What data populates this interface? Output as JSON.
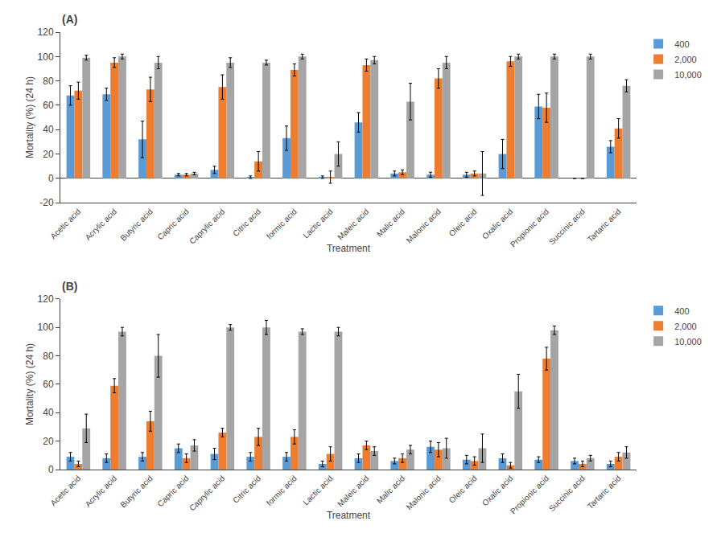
{
  "chart_data": [
    {
      "type": "bar",
      "title": "(A)",
      "xlabel": "Treatment",
      "ylabel": "Mortality (%) (24 h)",
      "categories": [
        "Acetic acid",
        "Acrylic acid",
        "Butyric acid",
        "Capric acid",
        "Caprylic acid",
        "Citric acid",
        "formic acid",
        "Lactic acid",
        "Maleic acid",
        "Malic acid",
        "Malonic acid",
        "Oleic acid",
        "Oxalic acid",
        "Propionic acid",
        "Succinic acid",
        "Tartaric acid"
      ],
      "series": [
        {
          "name": "400",
          "color": "#5B9BD5",
          "values": [
            68,
            69,
            32,
            3,
            7,
            1,
            33,
            1,
            46,
            4,
            3,
            3,
            20,
            59,
            0,
            26
          ],
          "error": [
            8,
            5,
            15,
            1,
            3,
            1,
            10,
            1,
            8,
            2,
            2,
            2,
            12,
            10,
            0,
            5
          ]
        },
        {
          "name": "2,000",
          "color": "#ED7D31",
          "values": [
            72,
            95,
            73,
            3,
            75,
            14,
            89,
            1,
            93,
            5,
            82,
            4,
            96,
            58,
            0,
            41
          ],
          "error": [
            7,
            4,
            10,
            1,
            10,
            8,
            5,
            5,
            5,
            2,
            8,
            2,
            4,
            12,
            0,
            8
          ]
        },
        {
          "name": "10,000",
          "color": "#A5A5A5",
          "values": [
            99,
            100,
            95,
            4,
            95,
            95,
            100,
            20,
            97,
            63,
            95,
            4,
            100,
            100,
            100,
            76
          ],
          "error": [
            2,
            2,
            5,
            1,
            4,
            2,
            2,
            10,
            3,
            15,
            5,
            18,
            2,
            2,
            2,
            5
          ]
        }
      ],
      "ylim": [
        -20,
        120
      ],
      "yticks": [
        -20,
        0,
        20,
        40,
        60,
        80,
        100,
        120
      ],
      "grid": false,
      "legend": "upper right"
    },
    {
      "type": "bar",
      "title": "(B)",
      "xlabel": "Treatment",
      "ylabel": "Mortality (%) (24 h)",
      "categories": [
        "Acetic acid",
        "Acrylic acid",
        "Butyric acid",
        "Capric acid",
        "Caprylic acid",
        "Citric acid",
        "formic acid",
        "Lactic acid",
        "Maleic acid",
        "Malic acid",
        "Malonic acid",
        "Oleic acid",
        "Oxalic acid",
        "Propionic acid",
        "Succinic acid",
        "Tartaric acid"
      ],
      "series": [
        {
          "name": "400",
          "color": "#5B9BD5",
          "values": [
            9,
            8,
            9,
            15,
            11,
            9,
            9,
            4,
            8,
            6,
            16,
            7,
            8,
            7,
            6,
            4
          ],
          "error": [
            3,
            3,
            3,
            3,
            4,
            3,
            3,
            2,
            3,
            2,
            4,
            3,
            3,
            2,
            2,
            2
          ]
        },
        {
          "name": "2,000",
          "color": "#ED7D31",
          "values": [
            4,
            59,
            34,
            8,
            26,
            23,
            23,
            11,
            17,
            8,
            14,
            6,
            3,
            78,
            4,
            9
          ],
          "error": [
            2,
            5,
            7,
            3,
            3,
            6,
            5,
            5,
            3,
            3,
            5,
            3,
            2,
            8,
            2,
            3
          ]
        },
        {
          "name": "10,000",
          "color": "#A5A5A5",
          "values": [
            29,
            97,
            80,
            17,
            100,
            100,
            97,
            97,
            13,
            14,
            15,
            15,
            55,
            98,
            8,
            12
          ],
          "error": [
            10,
            3,
            15,
            4,
            2,
            5,
            2,
            3,
            3,
            3,
            7,
            10,
            12,
            3,
            2,
            4
          ]
        }
      ],
      "ylim": [
        0,
        120
      ],
      "yticks": [
        0,
        20,
        40,
        60,
        80,
        100,
        120
      ],
      "grid": false,
      "legend": "upper right"
    }
  ]
}
